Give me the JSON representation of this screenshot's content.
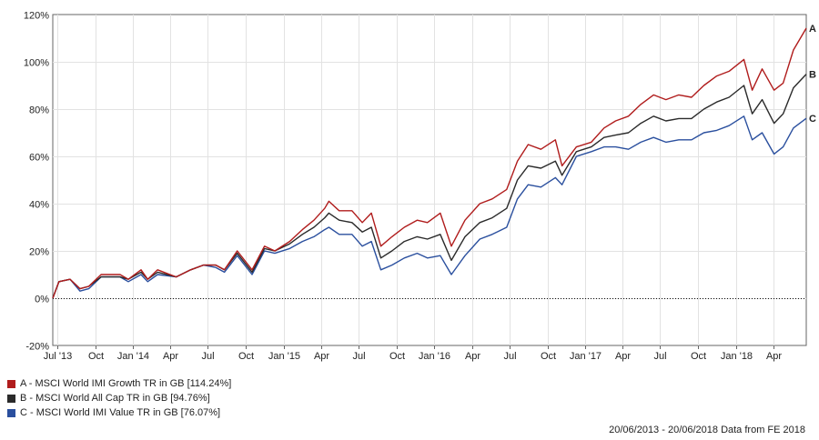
{
  "chart_data": {
    "type": "line",
    "ylim": [
      -20,
      120
    ],
    "y_ticks": [
      "120%",
      "100%",
      "80%",
      "60%",
      "40%",
      "20%",
      "0%",
      "-20%"
    ],
    "x_ticks": [
      "Jul '13",
      "Oct",
      "Jan '14",
      "Apr",
      "Jul",
      "Oct",
      "Jan '15",
      "Apr",
      "Jul",
      "Oct",
      "Jan '16",
      "Apr",
      "Jul",
      "Oct",
      "Jan '17",
      "Apr",
      "Jul",
      "Oct",
      "Jan '18",
      "Apr"
    ],
    "x_range": [
      "2013-06-20",
      "2018-06-20"
    ],
    "grid": true,
    "series": [
      {
        "name": "A - MSCI World IMI Growth TR in GB [114.24%]",
        "end_label": "A",
        "color": "#b01c1c",
        "points": [
          [
            "2013-06-20",
            0
          ],
          [
            "2013-07-05",
            7
          ],
          [
            "2013-08-01",
            8
          ],
          [
            "2013-08-25",
            4
          ],
          [
            "2013-09-15",
            5
          ],
          [
            "2013-10-15",
            10
          ],
          [
            "2013-11-30",
            10
          ],
          [
            "2013-12-20",
            8
          ],
          [
            "2014-01-20",
            12
          ],
          [
            "2014-02-05",
            8
          ],
          [
            "2014-03-01",
            12
          ],
          [
            "2014-04-15",
            9
          ],
          [
            "2014-05-20",
            12
          ],
          [
            "2014-06-20",
            14
          ],
          [
            "2014-07-20",
            14
          ],
          [
            "2014-08-10",
            12
          ],
          [
            "2014-09-10",
            20
          ],
          [
            "2014-10-16",
            12
          ],
          [
            "2014-11-15",
            22
          ],
          [
            "2014-12-10",
            20
          ],
          [
            "2015-01-15",
            24
          ],
          [
            "2015-02-15",
            29
          ],
          [
            "2015-03-15",
            33
          ],
          [
            "2015-04-10",
            38
          ],
          [
            "2015-04-20",
            41
          ],
          [
            "2015-05-15",
            37
          ],
          [
            "2015-06-15",
            37
          ],
          [
            "2015-07-10",
            32
          ],
          [
            "2015-08-01",
            36
          ],
          [
            "2015-08-24",
            22
          ],
          [
            "2015-09-20",
            26
          ],
          [
            "2015-10-20",
            30
          ],
          [
            "2015-11-20",
            33
          ],
          [
            "2015-12-15",
            32
          ],
          [
            "2016-01-15",
            36
          ],
          [
            "2016-02-11",
            22
          ],
          [
            "2016-03-15",
            33
          ],
          [
            "2016-04-20",
            40
          ],
          [
            "2016-05-20",
            42
          ],
          [
            "2016-06-24",
            46
          ],
          [
            "2016-07-20",
            58
          ],
          [
            "2016-08-15",
            65
          ],
          [
            "2016-09-15",
            63
          ],
          [
            "2016-10-20",
            67
          ],
          [
            "2016-11-05",
            56
          ],
          [
            "2016-12-10",
            64
          ],
          [
            "2017-01-15",
            66
          ],
          [
            "2017-02-15",
            72
          ],
          [
            "2017-03-15",
            75
          ],
          [
            "2017-04-15",
            77
          ],
          [
            "2017-05-15",
            82
          ],
          [
            "2017-06-15",
            86
          ],
          [
            "2017-07-15",
            84
          ],
          [
            "2017-08-15",
            86
          ],
          [
            "2017-09-15",
            85
          ],
          [
            "2017-10-15",
            90
          ],
          [
            "2017-11-15",
            94
          ],
          [
            "2017-12-15",
            96
          ],
          [
            "2018-01-20",
            101
          ],
          [
            "2018-02-09",
            88
          ],
          [
            "2018-03-05",
            97
          ],
          [
            "2018-04-03",
            88
          ],
          [
            "2018-04-25",
            91
          ],
          [
            "2018-05-20",
            105
          ],
          [
            "2018-06-20",
            114.24
          ]
        ]
      },
      {
        "name": "B - MSCI World All Cap TR in GB [94.76%]",
        "end_label": "B",
        "color": "#2a2a2a",
        "points": [
          [
            "2013-06-20",
            0
          ],
          [
            "2013-07-05",
            7
          ],
          [
            "2013-08-01",
            8
          ],
          [
            "2013-08-25",
            4
          ],
          [
            "2013-09-15",
            5
          ],
          [
            "2013-10-15",
            9
          ],
          [
            "2013-11-30",
            9
          ],
          [
            "2013-12-20",
            8
          ],
          [
            "2014-01-20",
            11
          ],
          [
            "2014-02-05",
            8
          ],
          [
            "2014-03-01",
            11
          ],
          [
            "2014-04-15",
            9
          ],
          [
            "2014-05-20",
            12
          ],
          [
            "2014-06-20",
            14
          ],
          [
            "2014-07-20",
            14
          ],
          [
            "2014-08-10",
            12
          ],
          [
            "2014-09-10",
            19
          ],
          [
            "2014-10-16",
            11
          ],
          [
            "2014-11-15",
            21
          ],
          [
            "2014-12-10",
            20
          ],
          [
            "2015-01-15",
            23
          ],
          [
            "2015-02-15",
            27
          ],
          [
            "2015-03-15",
            30
          ],
          [
            "2015-04-10",
            34
          ],
          [
            "2015-04-20",
            36
          ],
          [
            "2015-05-15",
            33
          ],
          [
            "2015-06-15",
            32
          ],
          [
            "2015-07-10",
            28
          ],
          [
            "2015-08-01",
            30
          ],
          [
            "2015-08-24",
            17
          ],
          [
            "2015-09-20",
            20
          ],
          [
            "2015-10-20",
            24
          ],
          [
            "2015-11-20",
            26
          ],
          [
            "2015-12-15",
            25
          ],
          [
            "2016-01-15",
            27
          ],
          [
            "2016-02-11",
            16
          ],
          [
            "2016-03-15",
            26
          ],
          [
            "2016-04-20",
            32
          ],
          [
            "2016-05-20",
            34
          ],
          [
            "2016-06-24",
            38
          ],
          [
            "2016-07-20",
            50
          ],
          [
            "2016-08-15",
            56
          ],
          [
            "2016-09-15",
            55
          ],
          [
            "2016-10-20",
            58
          ],
          [
            "2016-11-05",
            52
          ],
          [
            "2016-12-10",
            62
          ],
          [
            "2017-01-15",
            64
          ],
          [
            "2017-02-15",
            68
          ],
          [
            "2017-03-15",
            69
          ],
          [
            "2017-04-15",
            70
          ],
          [
            "2017-05-15",
            74
          ],
          [
            "2017-06-15",
            77
          ],
          [
            "2017-07-15",
            75
          ],
          [
            "2017-08-15",
            76
          ],
          [
            "2017-09-15",
            76
          ],
          [
            "2017-10-15",
            80
          ],
          [
            "2017-11-15",
            83
          ],
          [
            "2017-12-15",
            85
          ],
          [
            "2018-01-20",
            90
          ],
          [
            "2018-02-09",
            78
          ],
          [
            "2018-03-05",
            84
          ],
          [
            "2018-04-03",
            74
          ],
          [
            "2018-04-25",
            78
          ],
          [
            "2018-05-20",
            89
          ],
          [
            "2018-06-20",
            94.76
          ]
        ]
      },
      {
        "name": "C - MSCI World IMI Value TR in GB [76.07%]",
        "end_label": "C",
        "color": "#2a4f9e",
        "points": [
          [
            "2013-06-20",
            0
          ],
          [
            "2013-07-05",
            7
          ],
          [
            "2013-08-01",
            8
          ],
          [
            "2013-08-25",
            3
          ],
          [
            "2013-09-15",
            4
          ],
          [
            "2013-10-15",
            9
          ],
          [
            "2013-11-30",
            9
          ],
          [
            "2013-12-20",
            7
          ],
          [
            "2014-01-20",
            10
          ],
          [
            "2014-02-05",
            7
          ],
          [
            "2014-03-01",
            10
          ],
          [
            "2014-04-15",
            9
          ],
          [
            "2014-05-20",
            12
          ],
          [
            "2014-06-20",
            14
          ],
          [
            "2014-07-20",
            13
          ],
          [
            "2014-08-10",
            11
          ],
          [
            "2014-09-10",
            18
          ],
          [
            "2014-10-16",
            10
          ],
          [
            "2014-11-15",
            20
          ],
          [
            "2014-12-10",
            19
          ],
          [
            "2015-01-15",
            21
          ],
          [
            "2015-02-15",
            24
          ],
          [
            "2015-03-15",
            26
          ],
          [
            "2015-04-10",
            29
          ],
          [
            "2015-04-20",
            30
          ],
          [
            "2015-05-15",
            27
          ],
          [
            "2015-06-15",
            27
          ],
          [
            "2015-07-10",
            22
          ],
          [
            "2015-08-01",
            24
          ],
          [
            "2015-08-24",
            12
          ],
          [
            "2015-09-20",
            14
          ],
          [
            "2015-10-20",
            17
          ],
          [
            "2015-11-20",
            19
          ],
          [
            "2015-12-15",
            17
          ],
          [
            "2016-01-15",
            18
          ],
          [
            "2016-02-11",
            10
          ],
          [
            "2016-03-15",
            18
          ],
          [
            "2016-04-20",
            25
          ],
          [
            "2016-05-20",
            27
          ],
          [
            "2016-06-24",
            30
          ],
          [
            "2016-07-20",
            42
          ],
          [
            "2016-08-15",
            48
          ],
          [
            "2016-09-15",
            47
          ],
          [
            "2016-10-20",
            51
          ],
          [
            "2016-11-05",
            48
          ],
          [
            "2016-12-10",
            60
          ],
          [
            "2017-01-15",
            62
          ],
          [
            "2017-02-15",
            64
          ],
          [
            "2017-03-15",
            64
          ],
          [
            "2017-04-15",
            63
          ],
          [
            "2017-05-15",
            66
          ],
          [
            "2017-06-15",
            68
          ],
          [
            "2017-07-15",
            66
          ],
          [
            "2017-08-15",
            67
          ],
          [
            "2017-09-15",
            67
          ],
          [
            "2017-10-15",
            70
          ],
          [
            "2017-11-15",
            71
          ],
          [
            "2017-12-15",
            73
          ],
          [
            "2018-01-20",
            77
          ],
          [
            "2018-02-09",
            67
          ],
          [
            "2018-03-05",
            70
          ],
          [
            "2018-04-03",
            61
          ],
          [
            "2018-04-25",
            64
          ],
          [
            "2018-05-20",
            72
          ],
          [
            "2018-06-20",
            76.07
          ]
        ]
      }
    ]
  },
  "legend": [
    {
      "label": "A - MSCI World IMI Growth TR in GB [114.24%]",
      "color": "#b01c1c"
    },
    {
      "label": "B - MSCI World All Cap TR in GB [94.76%]",
      "color": "#2a2a2a"
    },
    {
      "label": "C - MSCI World IMI Value TR in GB [76.07%]",
      "color": "#2a4f9e"
    }
  ],
  "footer": "20/06/2013 - 20/06/2018 Data from FE 2018"
}
